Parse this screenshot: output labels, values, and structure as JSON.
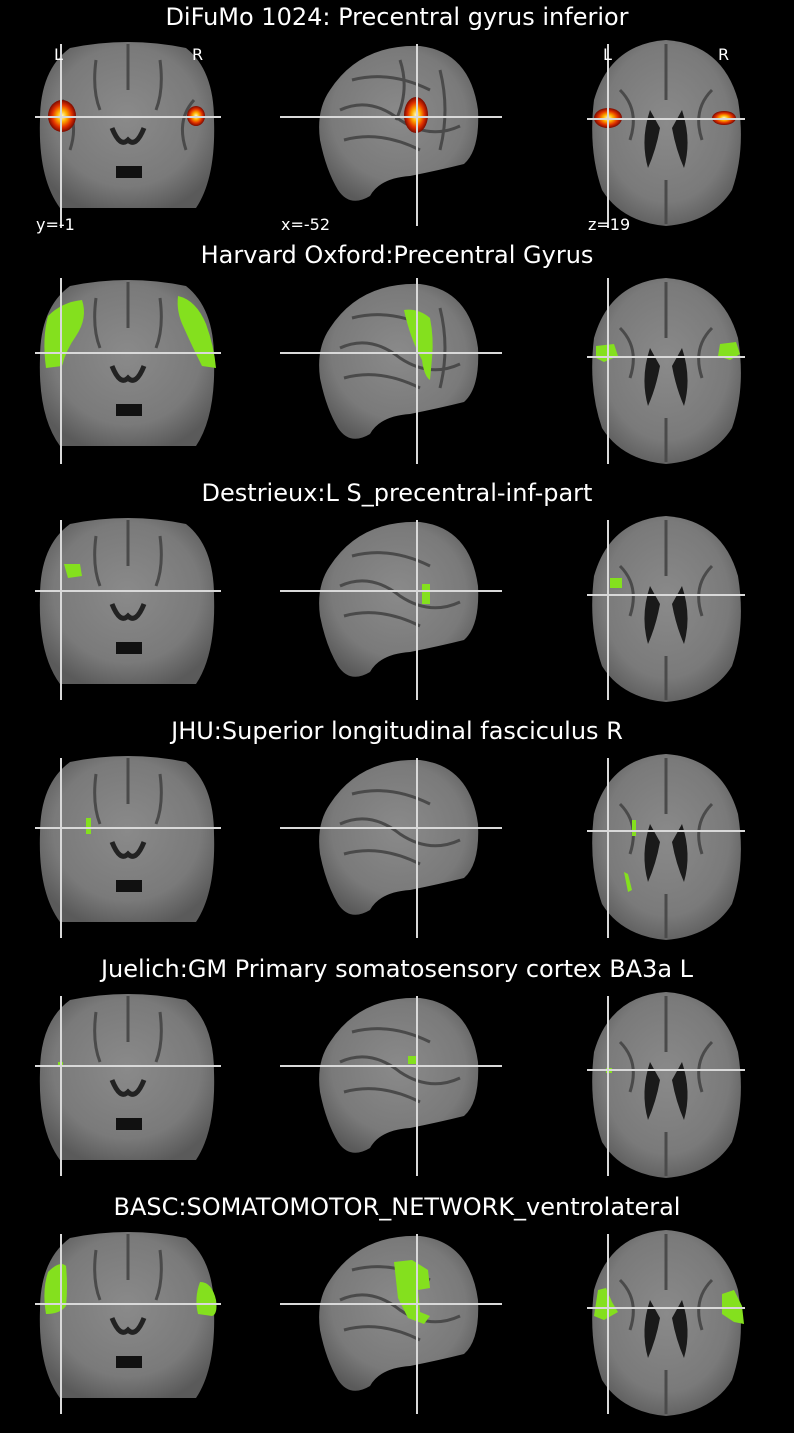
{
  "figure": {
    "colors": {
      "background": "#000000",
      "crosshair": "#d9d9d9",
      "overlay": "#84e01e",
      "heat_hot": "#ffffa0",
      "heat_mid": "#ff8a00",
      "heat_low": "#a01000"
    },
    "orientation": {
      "left": "L",
      "right": "R"
    },
    "coordinates": {
      "coronal": "y=-1",
      "sagittal": "x=-52",
      "axial": "z=19"
    },
    "rows": [
      {
        "title": "DiFuMo 1024: Precentral gyrus inferior",
        "overlay": "heatmap"
      },
      {
        "title": "Harvard Oxford:Precentral Gyrus",
        "overlay": "mask"
      },
      {
        "title": "Destrieux:L S_precentral-inf-part",
        "overlay": "mask"
      },
      {
        "title": "JHU:Superior longitudinal fasciculus R",
        "overlay": "mask"
      },
      {
        "title": "Juelich:GM Primary somatosensory cortex BA3a L",
        "overlay": "mask"
      },
      {
        "title": "BASC:SOMATOMOTOR_NETWORK_ventrolateral",
        "overlay": "mask"
      }
    ]
  }
}
